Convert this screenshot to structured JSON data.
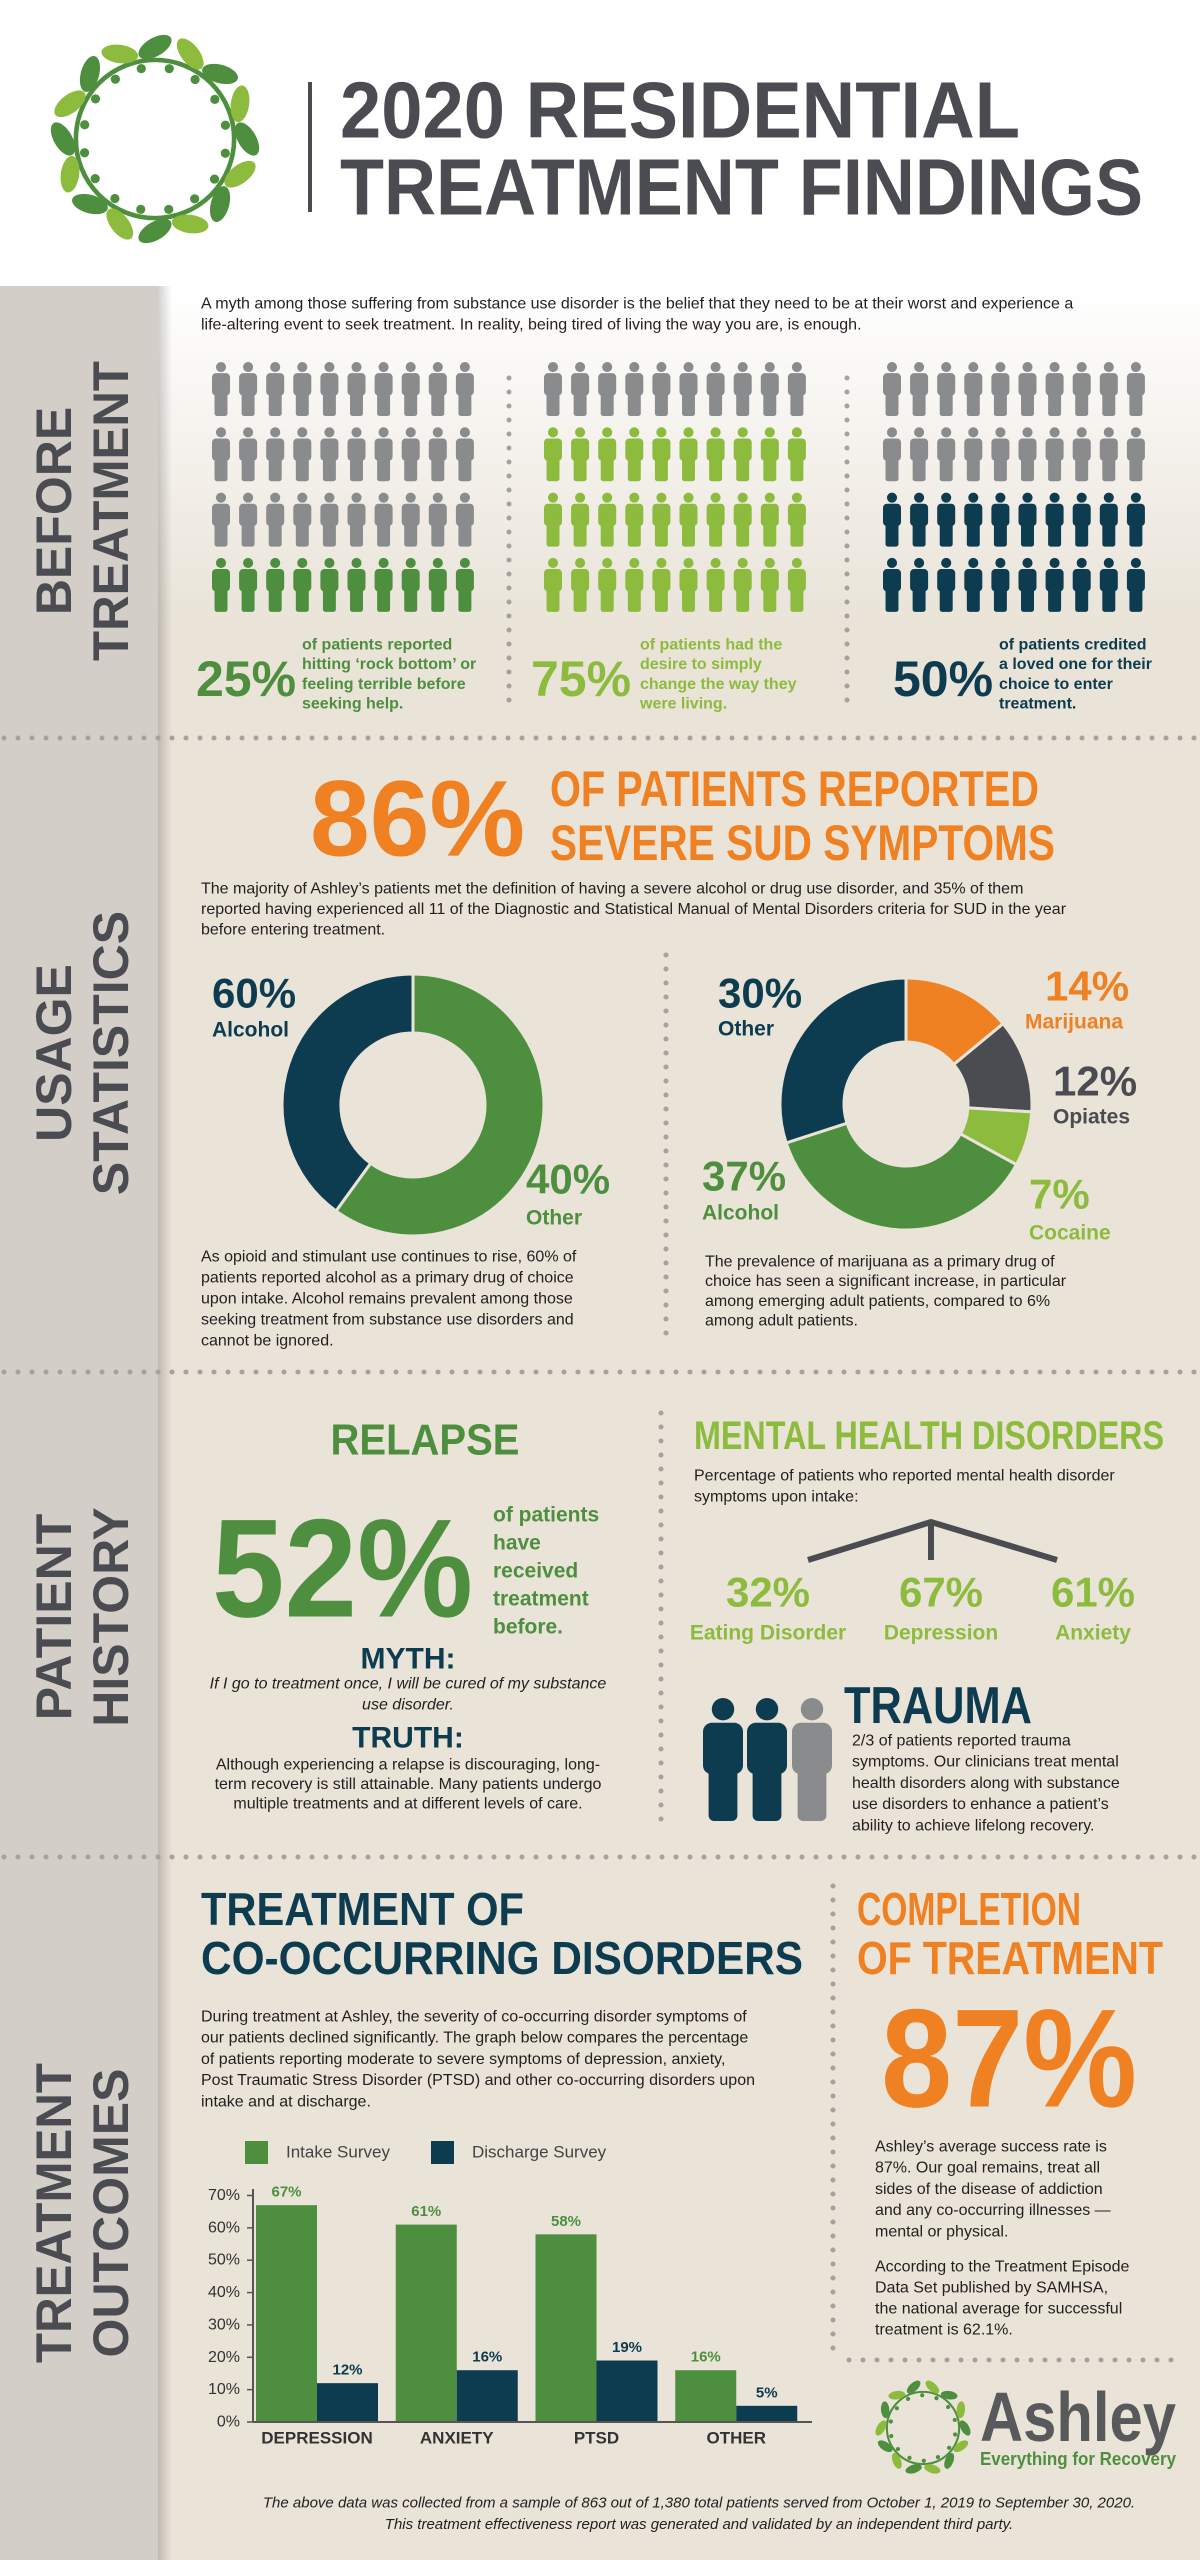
{
  "header": {
    "title": [
      "2020 RESIDENTIAL",
      "TREATMENT FINDINGS"
    ]
  },
  "section_labels": [
    [
      "BEFORE",
      "TREATMENT"
    ],
    [
      "USAGE",
      "STATISTICS"
    ],
    [
      "PATIENT",
      "HISTORY"
    ],
    [
      "TREATMENT",
      "OUTCOMES"
    ]
  ],
  "before": {
    "intro": [
      "A myth among those suffering from substance use disorder is the belief that they need to be at their worst and experience a",
      "life-altering event to seek treatment. In reality, being tired of living the way you are, is enough."
    ],
    "stats": [
      {
        "value": 25,
        "label": "25%",
        "color": "#4e8f3f",
        "text": [
          "of patients reported",
          "hitting ‘rock bottom’ or",
          "feeling terrible before",
          "seeking help."
        ]
      },
      {
        "value": 75,
        "label": "75%",
        "color": "#8dbb3e",
        "text": [
          "of patients had the",
          "desire to simply",
          "change the way they",
          "were living."
        ]
      },
      {
        "value": 50,
        "label": "50%",
        "color": "#0d3b4f",
        "text": [
          "of patients credited",
          "a loved one for their",
          "choice to enter",
          "treatment."
        ]
      }
    ]
  },
  "usage": {
    "headline_value": "86%",
    "headline": [
      "OF PATIENTS REPORTED",
      "SEVERE SUD SYMPTOMS"
    ],
    "intro": [
      "The majority of Ashley’s patients met the definition of having a severe alcohol or drug use disorder, and 35% of them",
      "reported having experienced all 11 of the Diagnostic and Statistical Manual of Mental Disorders criteria for SUD in the year",
      "before entering treatment."
    ],
    "notes": [
      [
        "As opioid and stimulant use continues to rise, 60% of",
        "patients reported alcohol as a primary drug of choice",
        "upon intake. Alcohol remains prevalent among those",
        "seeking treatment from substance use disorders and",
        "cannot be ignored."
      ],
      [
        "The prevalence of marijuana as a primary drug of",
        "choice has seen a significant increase, in particular",
        "among emerging adult patients, compared to 6%",
        "among adult patients."
      ]
    ]
  },
  "chart_data": [
    {
      "type": "pie",
      "categories": [
        "Alcohol",
        "Other"
      ],
      "values": [
        60,
        40
      ],
      "value_labels": [
        "60%",
        "40%"
      ],
      "colors": [
        "#4e8f3f",
        "#0d3b4f"
      ]
    },
    {
      "type": "pie",
      "categories": [
        "Marijuana",
        "Opiates",
        "Cocaine",
        "Alcohol",
        "Other"
      ],
      "values": [
        14,
        12,
        7,
        37,
        30
      ],
      "value_labels": [
        "14%",
        "12%",
        "7%",
        "37%",
        "30%"
      ],
      "colors": [
        "#f08122",
        "#4b4c51",
        "#8dbb3e",
        "#4e8f3f",
        "#0d3b4f"
      ]
    },
    {
      "type": "bar",
      "categories": [
        "DEPRESSION",
        "ANXIETY",
        "PTSD",
        "OTHER"
      ],
      "series": [
        {
          "name": "Intake Survey",
          "color": "#4e8f3f",
          "values": [
            67,
            61,
            58,
            16
          ],
          "value_labels": [
            "67%",
            "61%",
            "58%",
            "16%"
          ]
        },
        {
          "name": "Discharge Survey",
          "color": "#0d3b4f",
          "values": [
            12,
            16,
            19,
            5
          ],
          "value_labels": [
            "12%",
            "16%",
            "19%",
            "5%"
          ]
        }
      ],
      "ylim": [
        0,
        72
      ],
      "yticks": [
        {
          "value": 0,
          "label": "0%"
        },
        {
          "value": 10,
          "label": "10%"
        },
        {
          "value": 20,
          "label": "20%"
        },
        {
          "value": 30,
          "label": "30%"
        },
        {
          "value": 40,
          "label": "40%"
        },
        {
          "value": 50,
          "label": "50%"
        },
        {
          "value": 60,
          "label": "60%"
        },
        {
          "value": 70,
          "label": "70%"
        }
      ]
    }
  ],
  "history": {
    "relapse": {
      "title": "RELAPSE",
      "value": "52%",
      "text": [
        "of patients",
        "have",
        "received",
        "treatment",
        "before."
      ],
      "myth_title": "MYTH:",
      "myth": [
        "If I go to treatment once, I will be cured of my substance",
        "use disorder."
      ],
      "truth_title": "TRUTH:",
      "truth": [
        "Although experiencing a relapse is discouraging, long-",
        "term recovery is still attainable. Many patients undergo",
        "multiple treatments and at different levels of care."
      ]
    },
    "mental": {
      "title": "MENTAL HEALTH DISORDERS",
      "intro": [
        "Percentage of patients who reported mental health disorder",
        "symptoms upon intake:"
      ],
      "items": [
        {
          "value": "32%",
          "label": "Eating Disorder"
        },
        {
          "value": "67%",
          "label": "Depression"
        },
        {
          "value": "61%",
          "label": "Anxiety"
        }
      ]
    },
    "trauma": {
      "title": "TRAUMA",
      "text": [
        "2/3 of patients reported trauma",
        "symptoms. Our clinicians treat mental",
        "health disorders along with substance",
        "use disorders to enhance a patient’s",
        "ability to achieve lifelong recovery."
      ]
    }
  },
  "outcomes": {
    "co_title": [
      "TREATMENT OF",
      "CO-OCCURRING DISORDERS"
    ],
    "co_intro": [
      "During treatment at Ashley, the severity of co-occurring disorder symptoms of",
      "our patients declined significantly. The graph below compares the percentage",
      "of patients reporting moderate to severe symptoms of depression, anxiety,",
      "Post Traumatic Stress Disorder (PTSD) and other co-occurring disorders upon",
      "intake and at discharge."
    ],
    "completion_title": [
      "COMPLETION",
      "OF TREATMENT"
    ],
    "completion_value": "87%",
    "completion_text": [
      "Ashley’s average success rate is",
      "87%. Our goal remains, treat all",
      "sides of the disease of addiction",
      "and any co-occurring illnesses —",
      "mental or physical."
    ],
    "completion_note": [
      "According to the Treatment Episode",
      "Data Set published by SAMHSA,",
      "the national average for successful",
      "treatment is 62.1%."
    ]
  },
  "logo": {
    "name": "Ashley",
    "tagline": "Everything for Recovery"
  },
  "footnote": [
    "The above data was collected from a sample of 863 out of 1,380 total patients served from October 1, 2019 to September 30, 2020.",
    "This treatment effectiveness report was generated and validated by an independent third party."
  ]
}
